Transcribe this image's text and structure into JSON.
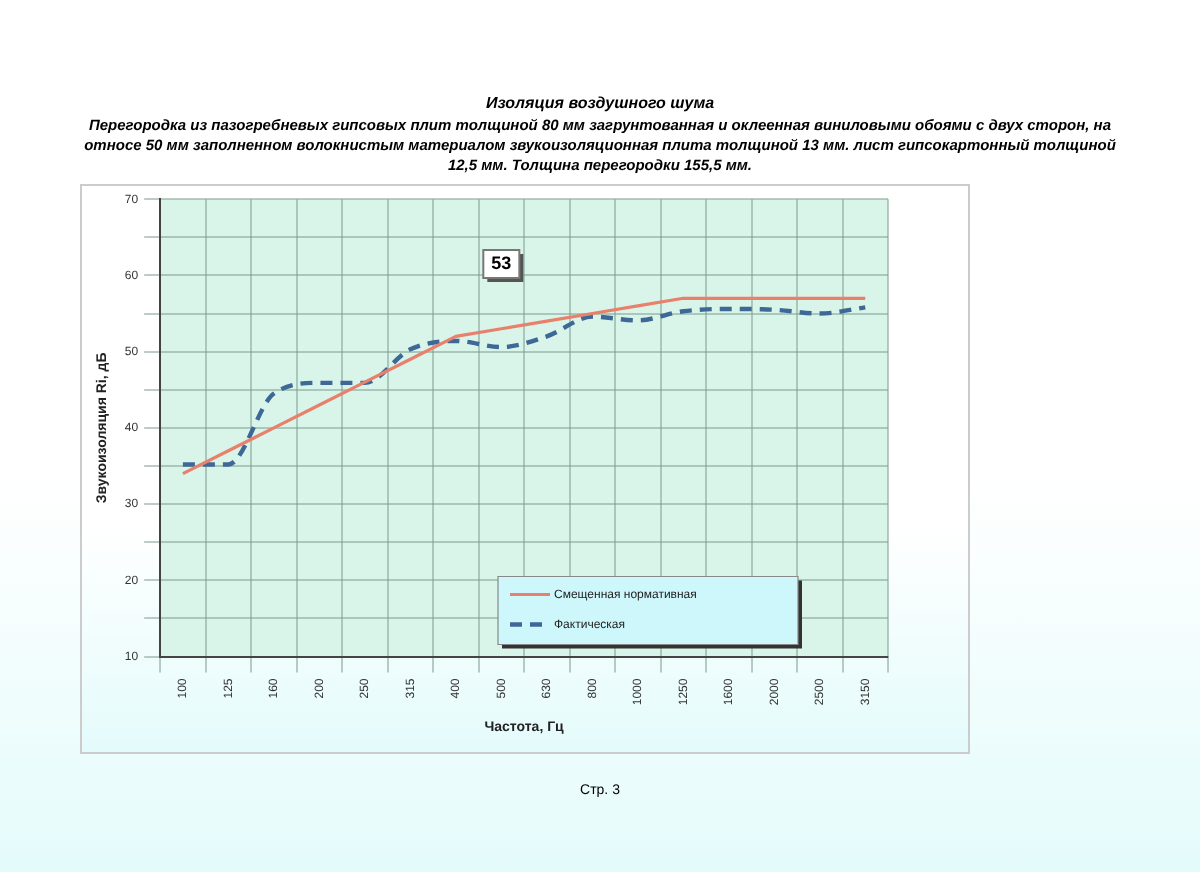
{
  "chart_data": {
    "type": "line",
    "title": "Изоляция воздушного шума",
    "subtitle": "Перегородка из пазогребневых гипсовых плит толщиной 80 мм загрунтованная  и оклеенная виниловыми обоями с двух сторон, на относе 50 мм заполненном волокнистым материалом звукоизоляционная плита толщиной 13 мм. лист гипсокартонный толщиной 12,5 мм. Толщина перегородки 155,5 мм.",
    "xlabel": "Частота, Гц",
    "ylabel": "Звукоизоляция Ri, дБ",
    "categories": [
      "100",
      "125",
      "160",
      "200",
      "250",
      "315",
      "400",
      "500",
      "630",
      "800",
      "1000",
      "1250",
      "1600",
      "2000",
      "2500",
      "3150"
    ],
    "series": [
      {
        "name": "Смещенная нормативная",
        "color": "#e8806c",
        "line_style": "solid",
        "values": [
          34,
          37,
          40,
          43,
          46,
          49,
          52,
          53,
          54,
          55,
          56,
          57,
          57,
          57,
          57,
          57
        ]
      },
      {
        "name": "Фактическая",
        "color": "#3e6896",
        "line_style": "dashed",
        "values": [
          35.2,
          35.2,
          44.5,
          45.9,
          45.9,
          50.3,
          51.4,
          50.6,
          52,
          54.6,
          54.1,
          55.3,
          55.6,
          55.5,
          55,
          55.8
        ]
      }
    ],
    "ylim": [
      10,
      70
    ],
    "yticks": [
      10,
      {
        "value": 15,
        "label": null
      },
      20,
      {
        "value": 25,
        "label": null
      },
      30,
      {
        "value": 35,
        "label": null
      },
      40,
      {
        "value": 45,
        "label": null
      },
      50,
      {
        "value": 55,
        "label": null
      },
      60,
      {
        "value": 65,
        "label": null
      },
      70
    ],
    "grid": true,
    "legend": "bottom right",
    "marker": "none",
    "annotations": [
      {
        "text": "53",
        "x": "500",
        "y": 61.5
      },
      "Стр. 3"
    ]
  }
}
